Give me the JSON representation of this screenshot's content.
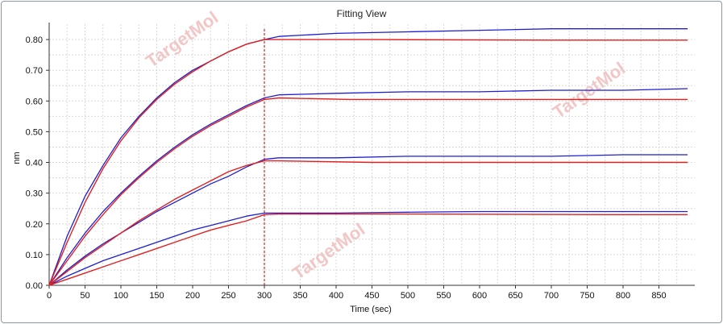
{
  "window": {
    "title": "Fitting View"
  },
  "watermarks": [
    "TargetMol",
    "TargetMol",
    "TargetMol"
  ],
  "chart_data": {
    "type": "line",
    "title": "Fitting View",
    "xlabel": "Time (sec)",
    "ylabel": "nm",
    "xlim": [
      0,
      900
    ],
    "ylim": [
      0,
      0.85
    ],
    "xticks": [
      0,
      50,
      100,
      150,
      200,
      250,
      300,
      350,
      400,
      450,
      500,
      550,
      600,
      650,
      700,
      750,
      800,
      850
    ],
    "yticks": [
      "0.00",
      "0.10",
      "0.20",
      "0.30",
      "0.40",
      "0.50",
      "0.60",
      "0.70",
      "0.80"
    ],
    "grid": true,
    "vertical_marker_x": 300,
    "colors": {
      "measured": "#1f1fcf",
      "fit": "#e02020",
      "marker": "#c00000"
    },
    "series": [
      {
        "kind": "measured",
        "points": [
          [
            0,
            0
          ],
          [
            25,
            0.16
          ],
          [
            50,
            0.29
          ],
          [
            75,
            0.39
          ],
          [
            100,
            0.48
          ],
          [
            125,
            0.55
          ],
          [
            150,
            0.61
          ],
          [
            175,
            0.66
          ],
          [
            200,
            0.7
          ],
          [
            225,
            0.73
          ],
          [
            250,
            0.76
          ],
          [
            275,
            0.785
          ],
          [
            300,
            0.8
          ],
          [
            320,
            0.81
          ],
          [
            400,
            0.82
          ],
          [
            500,
            0.825
          ],
          [
            600,
            0.83
          ],
          [
            700,
            0.835
          ],
          [
            800,
            0.835
          ],
          [
            890,
            0.835
          ]
        ]
      },
      {
        "kind": "fit",
        "points": [
          [
            0,
            0
          ],
          [
            25,
            0.14
          ],
          [
            50,
            0.27
          ],
          [
            75,
            0.38
          ],
          [
            100,
            0.47
          ],
          [
            125,
            0.545
          ],
          [
            150,
            0.605
          ],
          [
            175,
            0.655
          ],
          [
            200,
            0.695
          ],
          [
            225,
            0.73
          ],
          [
            250,
            0.76
          ],
          [
            275,
            0.785
          ],
          [
            300,
            0.8
          ],
          [
            320,
            0.8
          ],
          [
            450,
            0.8
          ],
          [
            700,
            0.798
          ],
          [
            890,
            0.798
          ]
        ]
      },
      {
        "kind": "measured",
        "points": [
          [
            0,
            0
          ],
          [
            25,
            0.09
          ],
          [
            50,
            0.17
          ],
          [
            75,
            0.24
          ],
          [
            100,
            0.3
          ],
          [
            125,
            0.355
          ],
          [
            150,
            0.405
          ],
          [
            175,
            0.45
          ],
          [
            200,
            0.49
          ],
          [
            225,
            0.525
          ],
          [
            250,
            0.555
          ],
          [
            275,
            0.585
          ],
          [
            300,
            0.61
          ],
          [
            320,
            0.62
          ],
          [
            400,
            0.625
          ],
          [
            500,
            0.63
          ],
          [
            600,
            0.63
          ],
          [
            700,
            0.635
          ],
          [
            800,
            0.635
          ],
          [
            890,
            0.64
          ]
        ]
      },
      {
        "kind": "fit",
        "points": [
          [
            0,
            0
          ],
          [
            25,
            0.08
          ],
          [
            50,
            0.16
          ],
          [
            75,
            0.23
          ],
          [
            100,
            0.295
          ],
          [
            125,
            0.35
          ],
          [
            150,
            0.4
          ],
          [
            175,
            0.445
          ],
          [
            200,
            0.485
          ],
          [
            225,
            0.52
          ],
          [
            250,
            0.55
          ],
          [
            275,
            0.58
          ],
          [
            300,
            0.605
          ],
          [
            320,
            0.61
          ],
          [
            420,
            0.605
          ],
          [
            890,
            0.605
          ]
        ]
      },
      {
        "kind": "measured",
        "points": [
          [
            0,
            0
          ],
          [
            25,
            0.05
          ],
          [
            50,
            0.095
          ],
          [
            75,
            0.135
          ],
          [
            100,
            0.17
          ],
          [
            125,
            0.205
          ],
          [
            150,
            0.24
          ],
          [
            175,
            0.27
          ],
          [
            200,
            0.3
          ],
          [
            225,
            0.33
          ],
          [
            250,
            0.355
          ],
          [
            275,
            0.385
          ],
          [
            300,
            0.41
          ],
          [
            320,
            0.415
          ],
          [
            400,
            0.415
          ],
          [
            500,
            0.42
          ],
          [
            600,
            0.42
          ],
          [
            700,
            0.42
          ],
          [
            800,
            0.425
          ],
          [
            890,
            0.425
          ]
        ]
      },
      {
        "kind": "fit",
        "points": [
          [
            0,
            0
          ],
          [
            25,
            0.045
          ],
          [
            50,
            0.09
          ],
          [
            75,
            0.13
          ],
          [
            100,
            0.17
          ],
          [
            125,
            0.21
          ],
          [
            150,
            0.245
          ],
          [
            175,
            0.28
          ],
          [
            200,
            0.31
          ],
          [
            225,
            0.34
          ],
          [
            250,
            0.37
          ],
          [
            275,
            0.39
          ],
          [
            300,
            0.405
          ],
          [
            320,
            0.405
          ],
          [
            450,
            0.4
          ],
          [
            890,
            0.4
          ]
        ]
      },
      {
        "kind": "measured",
        "points": [
          [
            0,
            0
          ],
          [
            25,
            0.03
          ],
          [
            50,
            0.055
          ],
          [
            75,
            0.08
          ],
          [
            100,
            0.1
          ],
          [
            125,
            0.12
          ],
          [
            150,
            0.14
          ],
          [
            175,
            0.16
          ],
          [
            200,
            0.18
          ],
          [
            225,
            0.195
          ],
          [
            250,
            0.21
          ],
          [
            275,
            0.225
          ],
          [
            300,
            0.235
          ],
          [
            320,
            0.235
          ],
          [
            400,
            0.235
          ],
          [
            500,
            0.238
          ],
          [
            600,
            0.24
          ],
          [
            700,
            0.24
          ],
          [
            800,
            0.24
          ],
          [
            890,
            0.24
          ]
        ]
      },
      {
        "kind": "fit",
        "points": [
          [
            0,
            0
          ],
          [
            25,
            0.02
          ],
          [
            50,
            0.04
          ],
          [
            75,
            0.06
          ],
          [
            100,
            0.08
          ],
          [
            125,
            0.1
          ],
          [
            150,
            0.12
          ],
          [
            175,
            0.14
          ],
          [
            200,
            0.16
          ],
          [
            225,
            0.18
          ],
          [
            250,
            0.195
          ],
          [
            275,
            0.21
          ],
          [
            300,
            0.23
          ],
          [
            320,
            0.232
          ],
          [
            500,
            0.232
          ],
          [
            780,
            0.23
          ],
          [
            890,
            0.23
          ]
        ]
      }
    ]
  }
}
